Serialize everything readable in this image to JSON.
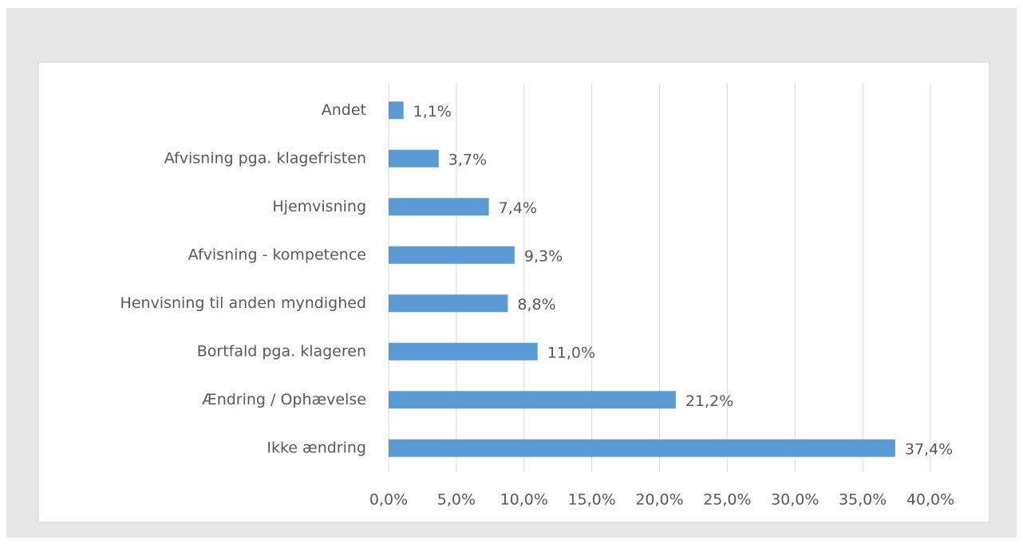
{
  "chart_data": {
    "type": "bar",
    "orientation": "horizontal",
    "categories": [
      "Andet",
      "Afvisning pga. klagefristen",
      "Hjemvisning",
      "Afvisning - kompetence",
      "Henvisning til anden myndighed",
      "Bortfald pga. klageren",
      "Ændring / Ophævelse",
      "Ikke ændring"
    ],
    "values": [
      1.1,
      3.7,
      7.4,
      9.3,
      8.8,
      11.0,
      21.2,
      37.4
    ],
    "value_labels": [
      "1,1%",
      "3,7%",
      "7,4%",
      "9,3%",
      "8,8%",
      "11,0%",
      "21,2%",
      "37,4%"
    ],
    "color": "#5b9bd5",
    "xlim": [
      0,
      40
    ],
    "xticks": [
      {
        "value": 0,
        "label": "0,0%"
      },
      {
        "value": 5,
        "label": "5,0%"
      },
      {
        "value": 10,
        "label": "10,0%"
      },
      {
        "value": 15,
        "label": "15,0%"
      },
      {
        "value": 20,
        "label": "20,0%"
      },
      {
        "value": 25,
        "label": "25,0%"
      },
      {
        "value": 30,
        "label": "30,0%"
      },
      {
        "value": 35,
        "label": "35,0%"
      },
      {
        "value": 40,
        "label": "40,0%"
      }
    ],
    "grid": true
  }
}
